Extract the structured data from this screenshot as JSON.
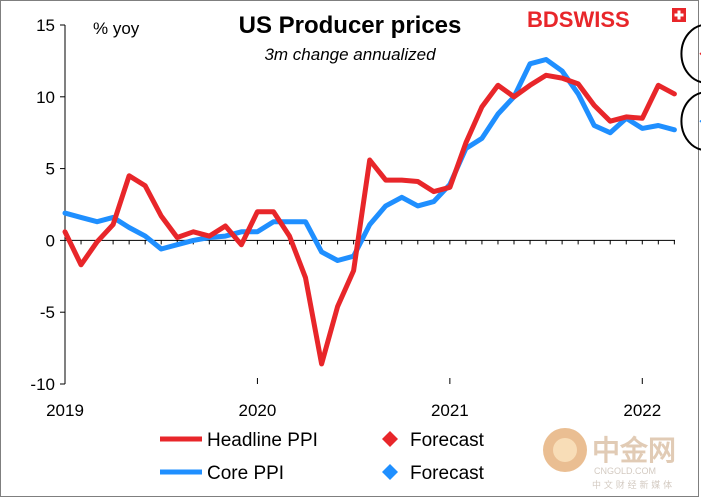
{
  "brand": {
    "logo_text": "BDSWISS"
  },
  "watermark": {
    "cn_name": "中金网",
    "domain": "CNGOLD.COM",
    "tagline": "中 文 财 经 新 媒 体"
  },
  "chart_data": {
    "type": "line",
    "title": "US Producer prices",
    "subtitle": "3m change annualized",
    "ylabel": "% yoy",
    "ylim": [
      -10,
      15
    ],
    "yticks": [
      -10,
      -5,
      0,
      5,
      10,
      15
    ],
    "ytick_labels": [
      "-10",
      "-5",
      "0",
      "5",
      "10",
      "15"
    ],
    "xlim": [
      2019.0,
      2022.17
    ],
    "xticks": [
      2019,
      2020,
      2021,
      2022
    ],
    "xtick_labels": [
      "2019",
      "2020",
      "2021",
      "2022"
    ],
    "grid": false,
    "legend_placement": "bottom",
    "series": [
      {
        "name": "Headline PPI",
        "color": "#e8262a",
        "x": [
          2019.0,
          2019.0833,
          2019.1667,
          2019.25,
          2019.3333,
          2019.4167,
          2019.5,
          2019.5833,
          2019.6667,
          2019.75,
          2019.8333,
          2019.9167,
          2020.0,
          2020.0833,
          2020.1667,
          2020.25,
          2020.3333,
          2020.4167,
          2020.5,
          2020.5833,
          2020.6667,
          2020.75,
          2020.8333,
          2020.9167,
          2021.0,
          2021.0833,
          2021.1667,
          2021.25,
          2021.3333,
          2021.4167,
          2021.5,
          2021.5833,
          2021.6667,
          2021.75,
          2021.8333,
          2021.9167,
          2022.0,
          2022.0833,
          2022.1667
        ],
        "y": [
          0.6,
          -1.7,
          -0.1,
          1.1,
          4.5,
          3.8,
          1.7,
          0.2,
          0.6,
          0.3,
          1.0,
          -0.3,
          2.0,
          2.0,
          0.3,
          -2.6,
          -8.6,
          -4.6,
          -2.1,
          5.6,
          4.2,
          4.2,
          4.1,
          3.4,
          3.7,
          6.8,
          9.3,
          10.8,
          10.0,
          10.8,
          11.5,
          11.3,
          10.9,
          9.4,
          8.3,
          8.6,
          8.5,
          10.8,
          10.2
        ]
      },
      {
        "name": "Core PPI",
        "color": "#1f8fff",
        "x": [
          2019.0,
          2019.0833,
          2019.1667,
          2019.25,
          2019.3333,
          2019.4167,
          2019.5,
          2019.5833,
          2019.6667,
          2019.75,
          2019.8333,
          2019.9167,
          2020.0,
          2020.0833,
          2020.1667,
          2020.25,
          2020.3333,
          2020.4167,
          2020.5,
          2020.5833,
          2020.6667,
          2020.75,
          2020.8333,
          2020.9167,
          2021.0,
          2021.0833,
          2021.1667,
          2021.25,
          2021.3333,
          2021.4167,
          2021.5,
          2021.5833,
          2021.6667,
          2021.75,
          2021.8333,
          2021.9167,
          2022.0,
          2022.0833,
          2022.1667
        ],
        "y": [
          1.9,
          1.6,
          1.3,
          1.6,
          0.9,
          0.3,
          -0.6,
          -0.3,
          0.0,
          0.2,
          0.3,
          0.6,
          0.6,
          1.3,
          1.3,
          1.3,
          -0.8,
          -1.4,
          -1.1,
          1.1,
          2.4,
          3.0,
          2.4,
          2.7,
          3.9,
          6.4,
          7.1,
          8.8,
          10.0,
          12.3,
          12.6,
          11.8,
          10.2,
          8.0,
          7.5,
          8.5,
          7.8,
          8.0,
          7.7
        ]
      },
      {
        "name": "Forecast",
        "color": "#e8262a",
        "marker": "diamond",
        "x": [
          2022.3333
        ],
        "y": [
          13.0
        ]
      },
      {
        "name": "Forecast",
        "color": "#1f8fff",
        "marker": "diamond",
        "x": [
          2022.3333
        ],
        "y": [
          8.3
        ]
      }
    ],
    "annotations": [
      {
        "shape": "circle",
        "target": "headline-forecast"
      },
      {
        "shape": "circle",
        "target": "core-forecast"
      }
    ]
  }
}
